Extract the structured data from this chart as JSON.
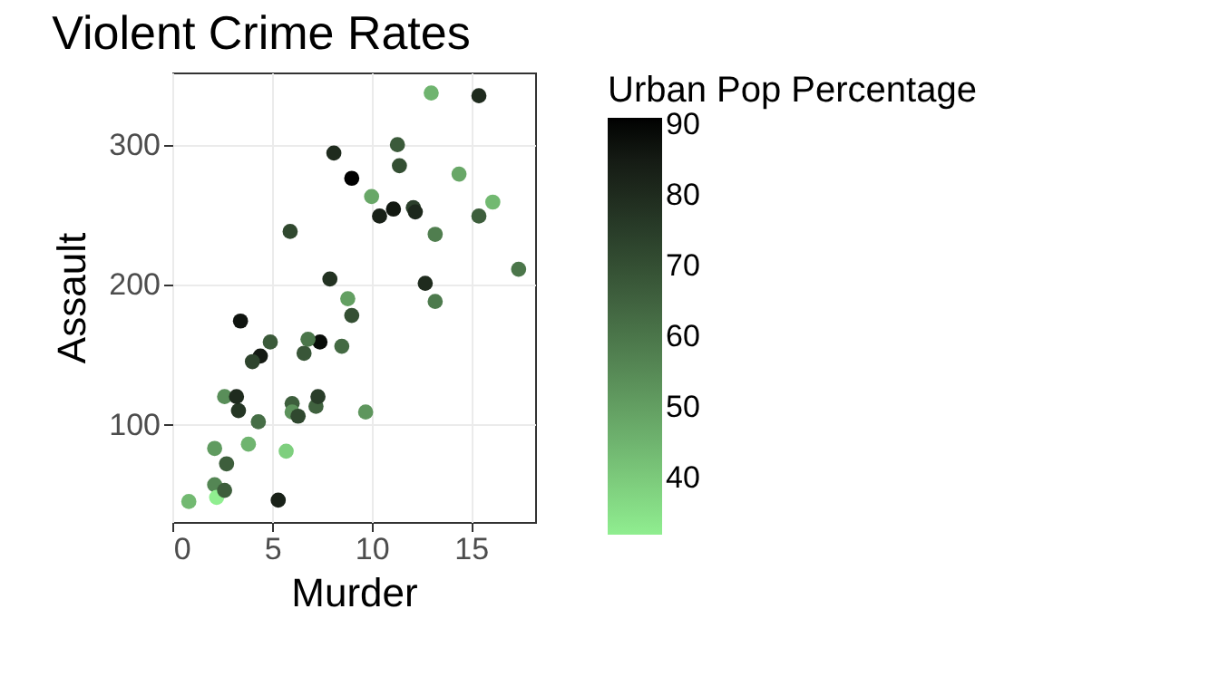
{
  "chart_data": {
    "type": "scatter",
    "title": "Violent Crime Rates",
    "xlabel": "Murder",
    "ylabel": "Assault",
    "legend_title": "Urban Pop Percentage",
    "x": [
      13.2,
      10.0,
      8.1,
      8.8,
      9.0,
      7.9,
      3.3,
      5.9,
      15.4,
      17.4,
      5.3,
      2.6,
      10.4,
      7.2,
      6.0,
      9.7,
      15.4,
      2.1,
      11.3,
      4.4,
      12.1,
      2.7,
      16.1,
      9.0,
      6.0,
      4.3,
      12.2,
      2.1,
      7.4,
      11.4,
      11.1,
      13.0,
      0.8,
      7.3,
      6.6,
      4.9,
      6.3,
      3.4,
      14.4,
      3.8,
      13.2,
      12.7,
      3.2,
      2.2,
      8.5,
      4.0,
      5.7,
      2.6,
      6.8
    ],
    "values": [
      236,
      263,
      294,
      190,
      276,
      204,
      110,
      238,
      335,
      211,
      46,
      120,
      249,
      113,
      115,
      109,
      249,
      83,
      300,
      149,
      255,
      72,
      259,
      178,
      109,
      102,
      252,
      57,
      159,
      285,
      254,
      337,
      45,
      120,
      151,
      159,
      106,
      174,
      279,
      86,
      188,
      201,
      120,
      48,
      156,
      145,
      81,
      53,
      161
    ],
    "cvalues": [
      58,
      48,
      80,
      50,
      91,
      78,
      77,
      72,
      80,
      60,
      83,
      54,
      83,
      65,
      66,
      52,
      66,
      51,
      67,
      85,
      74,
      66,
      44,
      70,
      53,
      62,
      81,
      56,
      89,
      70,
      86,
      45,
      44,
      75,
      68,
      67,
      72,
      87,
      48,
      45,
      59,
      80,
      80,
      32,
      63,
      73,
      39,
      66,
      60
    ],
    "clim": [
      32,
      91
    ],
    "cticks": [
      40,
      50,
      60,
      70,
      80,
      90
    ],
    "xlim": [
      -0.03,
      18.23
    ],
    "xticks": [
      0,
      5,
      10,
      15
    ],
    "ylim": [
      30.4,
      351.6
    ],
    "yticks": [
      100,
      200,
      300
    ],
    "grid": true
  }
}
